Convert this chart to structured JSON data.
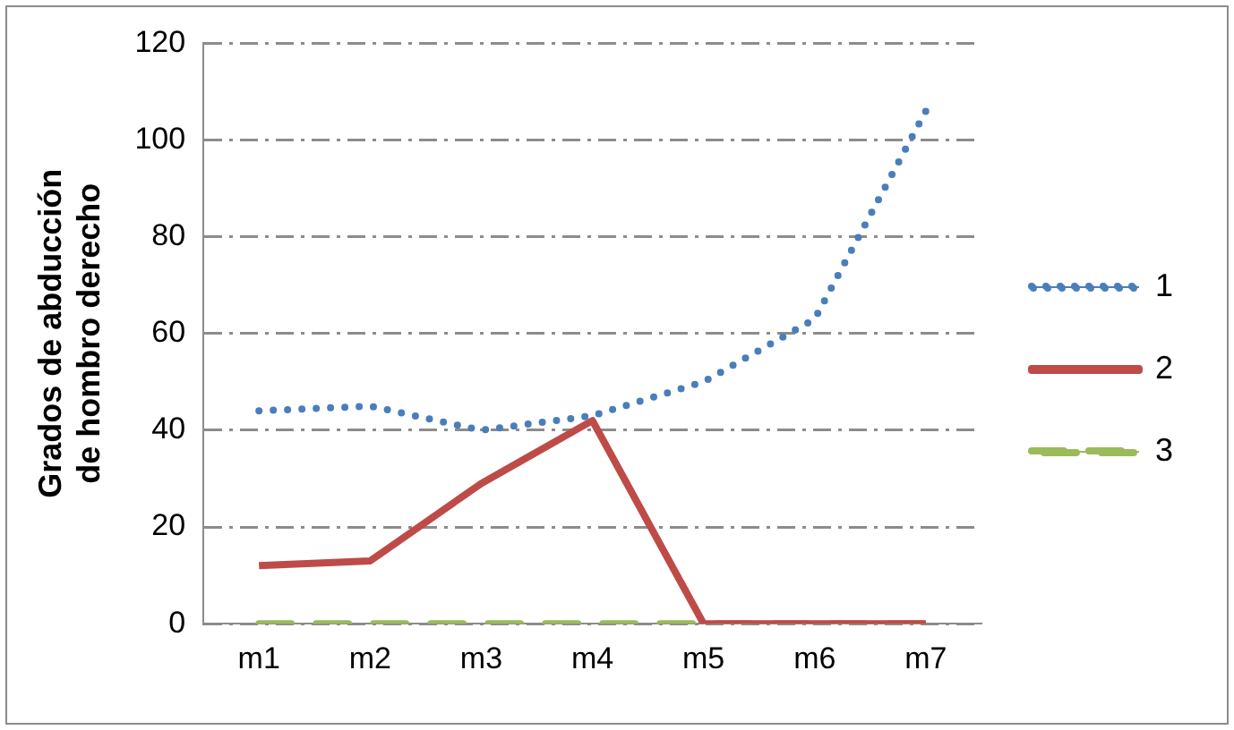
{
  "chart_data": {
    "type": "line",
    "ylabel": "Grados de abducción de hombro derecho",
    "categories": [
      "m1",
      "m2",
      "m3",
      "m4",
      "m5",
      "m6",
      "m7"
    ],
    "series": [
      {
        "name": "1",
        "color": "#4a7ebb",
        "line_style": "dotted",
        "values": [
          44,
          45,
          40,
          43,
          50,
          63,
          106
        ]
      },
      {
        "name": "2",
        "color": "#be4b48",
        "line_style": "solid",
        "values": [
          12,
          13,
          29,
          42,
          0,
          0,
          0
        ]
      },
      {
        "name": "3",
        "color": "#9bbb59",
        "line_style": "dashed",
        "values": [
          0,
          0,
          0,
          0,
          0,
          0,
          0
        ]
      }
    ],
    "ylim": [
      0,
      120
    ],
    "yticks": [
      0,
      20,
      40,
      60,
      80,
      100,
      120
    ],
    "grid": "y",
    "legend": "right",
    "marker": "none"
  }
}
